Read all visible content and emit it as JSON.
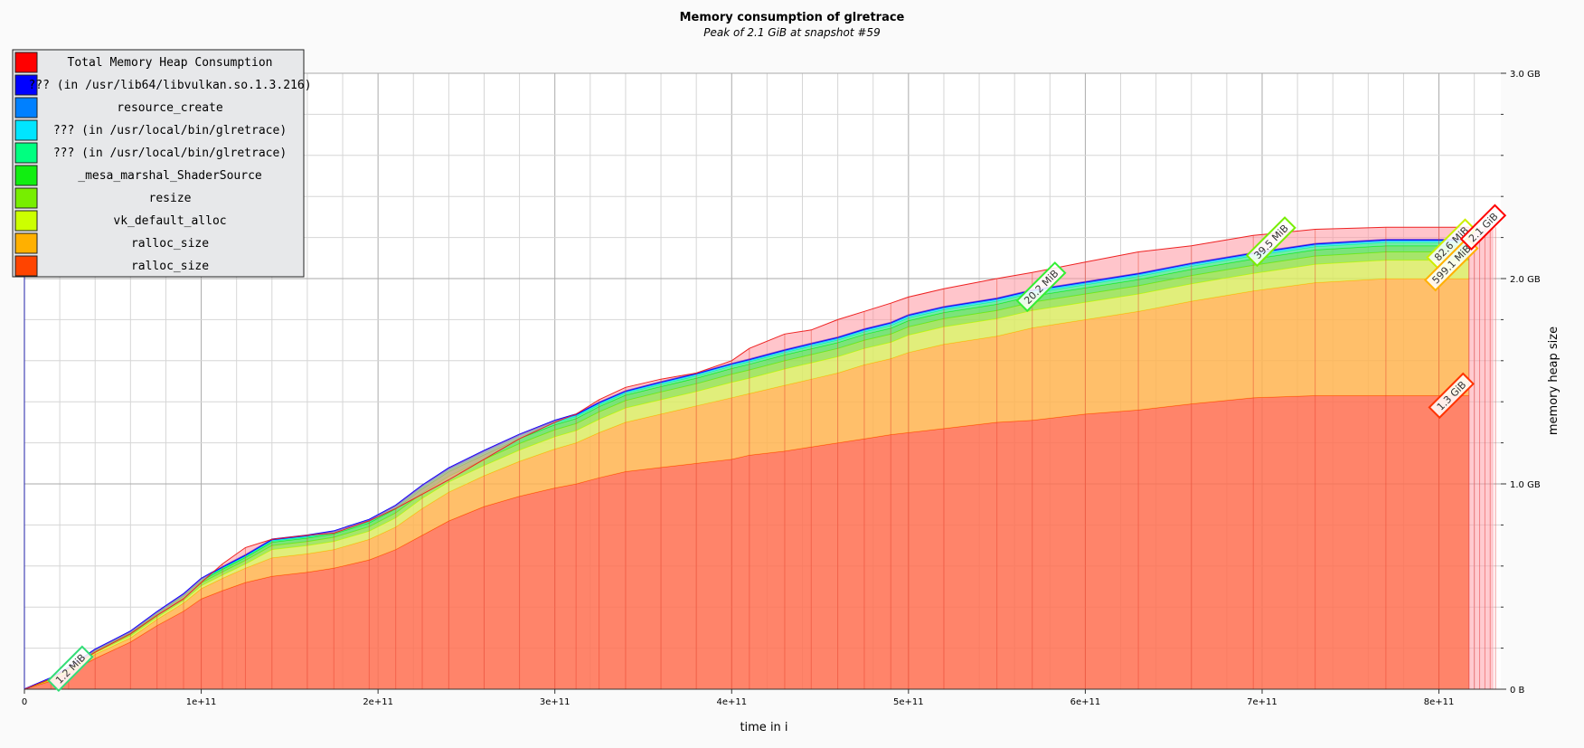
{
  "chart_data": {
    "type": "area",
    "stacked": true,
    "title": "Memory consumption of glretrace",
    "subtitle": "Peak of 2.1 GiB at snapshot #59",
    "xlabel": "time in i",
    "ylabel": "memory heap size",
    "xlim": [
      0,
      835000000000.0
    ],
    "ylim": [
      0,
      3.0
    ],
    "x_ticks": [
      {
        "value": 0,
        "label": "0"
      },
      {
        "value": 100000000000.0,
        "label": "1e+11"
      },
      {
        "value": 200000000000.0,
        "label": "2e+11"
      },
      {
        "value": 300000000000.0,
        "label": "3e+11"
      },
      {
        "value": 400000000000.0,
        "label": "4e+11"
      },
      {
        "value": 500000000000.0,
        "label": "5e+11"
      },
      {
        "value": 600000000000.0,
        "label": "6e+11"
      },
      {
        "value": 700000000000.0,
        "label": "7e+11"
      },
      {
        "value": 800000000000.0,
        "label": "8e+11"
      }
    ],
    "y_ticks": [
      {
        "value": 0,
        "label": "0 B"
      },
      {
        "value": 1.0,
        "label": "1.0 GB"
      },
      {
        "value": 2.0,
        "label": "2.0 GB"
      },
      {
        "value": 3.0,
        "label": "3.0 GB"
      }
    ],
    "grid": true,
    "legend_position": "top-left",
    "legend": [
      {
        "name": "Total Memory Heap Consumption",
        "color": "#ff0000"
      },
      {
        "name": "??? (in /usr/lib64/libvulkan.so.1.3.216)",
        "color": "#0000ff"
      },
      {
        "name": "resource_create",
        "color": "#0080ff"
      },
      {
        "name": "??? (in /usr/local/bin/glretrace)",
        "color": "#00e5ff"
      },
      {
        "name": "??? (in /usr/local/bin/glretrace)",
        "color": "#00ff80"
      },
      {
        "name": "_mesa_marshal_ShaderSource",
        "color": "#11ee11"
      },
      {
        "name": "resize",
        "color": "#77ee00"
      },
      {
        "name": "vk_default_alloc",
        "color": "#ccff00"
      },
      {
        "name": "ralloc_size",
        "color": "#ffb000"
      },
      {
        "name": "ralloc_size",
        "color": "#ff4400"
      }
    ],
    "x": [
      0,
      15000000000.0,
      25000000000.0,
      40000000000.0,
      60000000000.0,
      75000000000.0,
      90000000000.0,
      100000000000.0,
      112000000000.0,
      125000000000.0,
      140000000000.0,
      160000000000.0,
      175000000000.0,
      195000000000.0,
      210000000000.0,
      225000000000.0,
      240000000000.0,
      260000000000.0,
      280000000000.0,
      300000000000.0,
      312000000000.0,
      325000000000.0,
      340000000000.0,
      360000000000.0,
      380000000000.0,
      400000000000.0,
      410000000000.0,
      430000000000.0,
      445000000000.0,
      460000000000.0,
      475000000000.0,
      490000000000.0,
      500000000000.0,
      520000000000.0,
      550000000000.0,
      570000000000.0,
      600000000000.0,
      630000000000.0,
      660000000000.0,
      695000000000.0,
      730000000000.0,
      770000000000.0,
      800000000000.0,
      817000000000.0
    ],
    "total_heap_gb": [
      0,
      0.05,
      0.1,
      0.18,
      0.27,
      0.36,
      0.44,
      0.52,
      0.61,
      0.69,
      0.73,
      0.75,
      0.76,
      0.82,
      0.88,
      0.95,
      1.02,
      1.12,
      1.22,
      1.3,
      1.34,
      1.41,
      1.47,
      1.51,
      1.54,
      1.6,
      1.66,
      1.73,
      1.75,
      1.8,
      1.84,
      1.88,
      1.91,
      1.95,
      2.0,
      2.03,
      2.08,
      2.13,
      2.16,
      2.21,
      2.24,
      2.25,
      2.25,
      2.25
    ],
    "series": [
      {
        "name": "ralloc_size",
        "color": "#ff4400",
        "values": [
          0,
          0.04,
          0.08,
          0.15,
          0.23,
          0.31,
          0.38,
          0.44,
          0.48,
          0.52,
          0.55,
          0.57,
          0.59,
          0.63,
          0.68,
          0.75,
          0.82,
          0.89,
          0.94,
          0.98,
          1.0,
          1.03,
          1.06,
          1.08,
          1.1,
          1.12,
          1.14,
          1.16,
          1.18,
          1.2,
          1.22,
          1.24,
          1.25,
          1.27,
          1.3,
          1.31,
          1.34,
          1.36,
          1.39,
          1.42,
          1.43,
          1.43,
          1.43,
          1.43
        ]
      },
      {
        "name": "ralloc_size",
        "color": "#ffb000",
        "values": [
          0,
          0.005,
          0.01,
          0.02,
          0.02,
          0.03,
          0.04,
          0.05,
          0.06,
          0.07,
          0.09,
          0.09,
          0.09,
          0.1,
          0.11,
          0.13,
          0.14,
          0.15,
          0.17,
          0.19,
          0.2,
          0.22,
          0.24,
          0.26,
          0.28,
          0.3,
          0.3,
          0.32,
          0.33,
          0.34,
          0.36,
          0.37,
          0.39,
          0.41,
          0.42,
          0.45,
          0.46,
          0.48,
          0.5,
          0.52,
          0.55,
          0.57,
          0.57,
          0.57
        ]
      },
      {
        "name": "vk_default_alloc",
        "color": "#ccff00",
        "values": [
          0,
          0.002,
          0.005,
          0.008,
          0.01,
          0.01,
          0.012,
          0.014,
          0.016,
          0.02,
          0.04,
          0.04,
          0.04,
          0.04,
          0.045,
          0.05,
          0.05,
          0.05,
          0.055,
          0.06,
          0.06,
          0.065,
          0.07,
          0.07,
          0.07,
          0.075,
          0.075,
          0.08,
          0.08,
          0.08,
          0.08,
          0.08,
          0.085,
          0.085,
          0.085,
          0.085,
          0.085,
          0.085,
          0.085,
          0.085,
          0.09,
          0.09,
          0.09,
          0.09
        ]
      },
      {
        "name": "resize",
        "color": "#77ee00",
        "values": [
          0,
          0.002,
          0.004,
          0.006,
          0.008,
          0.01,
          0.012,
          0.014,
          0.016,
          0.018,
          0.02,
          0.02,
          0.02,
          0.022,
          0.024,
          0.026,
          0.028,
          0.03,
          0.032,
          0.034,
          0.034,
          0.036,
          0.036,
          0.038,
          0.038,
          0.04,
          0.04,
          0.04,
          0.04,
          0.04,
          0.04,
          0.04,
          0.04,
          0.04,
          0.04,
          0.04,
          0.04,
          0.04,
          0.04,
          0.04,
          0.04,
          0.04,
          0.04,
          0.04
        ]
      },
      {
        "name": "_mesa_marshal_ShaderSource",
        "color": "#11ee11",
        "values": [
          0,
          0.001,
          0.002,
          0.004,
          0.006,
          0.008,
          0.01,
          0.01,
          0.012,
          0.014,
          0.016,
          0.016,
          0.016,
          0.018,
          0.02,
          0.02,
          0.022,
          0.022,
          0.024,
          0.024,
          0.024,
          0.025,
          0.026,
          0.026,
          0.027,
          0.027,
          0.028,
          0.028,
          0.028,
          0.028,
          0.028,
          0.028,
          0.03,
          0.03,
          0.03,
          0.03,
          0.03,
          0.03,
          0.03,
          0.03,
          0.03,
          0.03,
          0.03,
          0.03
        ]
      },
      {
        "name": "??? (in /usr/local/bin/glretrace)",
        "color": "#00ff80",
        "values": [
          0,
          0.001,
          0.001,
          0.002,
          0.003,
          0.003,
          0.004,
          0.004,
          0.005,
          0.005,
          0.006,
          0.006,
          0.006,
          0.007,
          0.007,
          0.008,
          0.008,
          0.009,
          0.009,
          0.01,
          0.01,
          0.01,
          0.01,
          0.011,
          0.011,
          0.012,
          0.012,
          0.012,
          0.013,
          0.013,
          0.013,
          0.014,
          0.014,
          0.014,
          0.015,
          0.015,
          0.015,
          0.016,
          0.016,
          0.016,
          0.016,
          0.016,
          0.016,
          0.016
        ]
      },
      {
        "name": "??? (in /usr/local/bin/glretrace)",
        "color": "#00e5ff",
        "values": [
          0,
          0.001,
          0.001,
          0.001,
          0.002,
          0.002,
          0.002,
          0.003,
          0.003,
          0.003,
          0.003,
          0.003,
          0.003,
          0.004,
          0.004,
          0.004,
          0.004,
          0.005,
          0.005,
          0.005,
          0.005,
          0.005,
          0.005,
          0.006,
          0.006,
          0.006,
          0.006,
          0.006,
          0.006,
          0.006,
          0.006,
          0.007,
          0.007,
          0.007,
          0.007,
          0.007,
          0.007,
          0.007,
          0.007,
          0.007,
          0.007,
          0.007,
          0.007,
          0.007
        ]
      },
      {
        "name": "resource_create",
        "color": "#0080ff",
        "values": [
          0,
          0.001,
          0.001,
          0.001,
          0.001,
          0.002,
          0.002,
          0.002,
          0.002,
          0.002,
          0.003,
          0.003,
          0.003,
          0.003,
          0.003,
          0.003,
          0.003,
          0.004,
          0.004,
          0.004,
          0.004,
          0.004,
          0.004,
          0.004,
          0.004,
          0.004,
          0.004,
          0.005,
          0.005,
          0.005,
          0.005,
          0.005,
          0.005,
          0.005,
          0.005,
          0.005,
          0.005,
          0.005,
          0.005,
          0.005,
          0.005,
          0.005,
          0.005,
          0.005
        ]
      },
      {
        "name": "??? (in /usr/lib64/libvulkan.so.1.3.216)",
        "color": "#0000ff",
        "values": [
          0,
          0.002,
          0.002,
          0.002,
          0.002,
          0.002,
          0.002,
          0.002,
          0.002,
          0.002,
          0.002,
          0.002,
          0.002,
          0.002,
          0.002,
          0.002,
          0.002,
          0.002,
          0.002,
          0.002,
          0.002,
          0.002,
          0.002,
          0.002,
          0.002,
          0.002,
          0.002,
          0.002,
          0.002,
          0.002,
          0.002,
          0.002,
          0.002,
          0.002,
          0.002,
          0.002,
          0.002,
          0.002,
          0.002,
          0.002,
          0.002,
          0.002,
          0.002,
          0.002
        ]
      }
    ],
    "annotations": [
      {
        "label": "1.2 MiB",
        "x": 26000000000.0,
        "y": 0.1,
        "color": "#33dd77"
      },
      {
        "label": "20.2 MiB",
        "x": 575000000000.0,
        "y": 1.96,
        "color": "#33ee33"
      },
      {
        "label": "39.5 MiB",
        "x": 705000000000.0,
        "y": 2.18,
        "color": "#77ee00"
      },
      {
        "label": "82.6 MiB",
        "x": 807000000000.0,
        "y": 2.17,
        "color": "#ccee00"
      },
      {
        "label": "599.1 MiB",
        "x": 807000000000.0,
        "y": 2.07,
        "color": "#ffb000"
      },
      {
        "label": "1.3 GiB",
        "x": 807000000000.0,
        "y": 1.43,
        "color": "#ff3300"
      },
      {
        "label": "2.1 GiB",
        "x": 825000000000.0,
        "y": 2.25,
        "color": "#ff0000"
      }
    ]
  }
}
